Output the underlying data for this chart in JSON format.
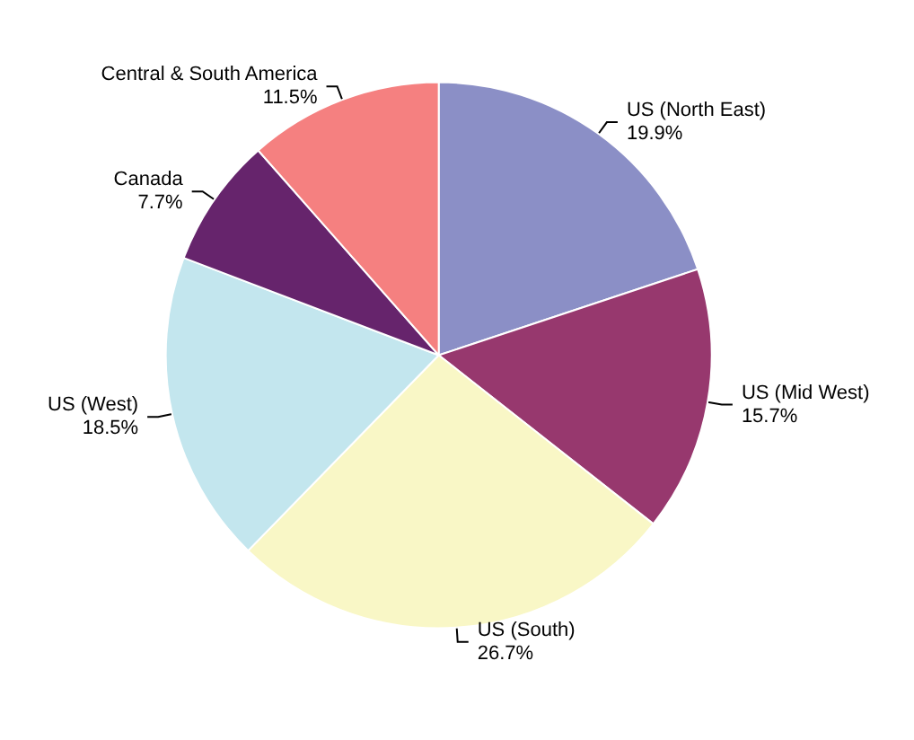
{
  "chart_data": {
    "type": "pie",
    "categories": [
      "US (North East)",
      "US (Mid West)",
      "US (South)",
      "US (West)",
      "Canada",
      "Central & South America"
    ],
    "values": [
      19.9,
      15.7,
      26.7,
      18.5,
      7.7,
      11.5
    ],
    "value_labels": [
      "19.9%",
      "15.7%",
      "26.7%",
      "18.5%",
      "7.7%",
      "11.5%"
    ],
    "colors": [
      "#8b8fc6",
      "#97386e",
      "#f9f7c6",
      "#c3e6ee",
      "#66246c",
      "#f58080"
    ]
  }
}
